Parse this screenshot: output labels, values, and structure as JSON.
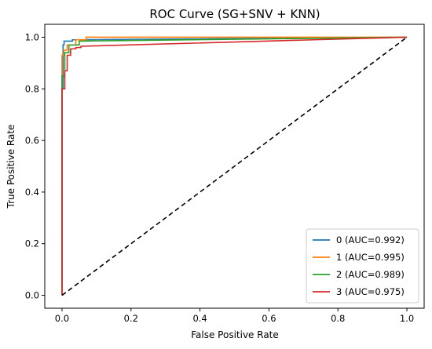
{
  "chart_data": {
    "type": "line",
    "title": "ROC Curve (SG+SNV + KNN)",
    "xlabel": "False Positive Rate",
    "ylabel": "True Positive Rate",
    "xlim": [
      -0.05,
      1.05
    ],
    "ylim": [
      -0.05,
      1.05
    ],
    "xticks": [
      "0.0",
      "0.2",
      "0.4",
      "0.6",
      "0.8",
      "1.0"
    ],
    "yticks": [
      "0.0",
      "0.2",
      "0.4",
      "0.6",
      "0.8",
      "1.0"
    ],
    "grid": false,
    "legend_position": "lower right",
    "series": [
      {
        "name": "0 (AUC=0.992)",
        "color": "#1f77b4",
        "x": [
          0,
          0,
          0.003,
          0.003,
          0.006,
          0.006,
          0.03,
          0.03,
          1.0
        ],
        "y": [
          0,
          0.8,
          0.8,
          0.97,
          0.97,
          0.985,
          0.985,
          0.99,
          1.0
        ]
      },
      {
        "name": "1 (AUC=0.995)",
        "color": "#ff7f0e",
        "x": [
          0,
          0,
          0.005,
          0.005,
          0.015,
          0.015,
          0.04,
          0.04,
          0.07,
          0.07,
          1.0
        ],
        "y": [
          0,
          0.93,
          0.93,
          0.95,
          0.95,
          0.97,
          0.97,
          0.99,
          0.99,
          1.0,
          1.0
        ]
      },
      {
        "name": "2 (AUC=0.989)",
        "color": "#2ca02c",
        "x": [
          0,
          0,
          0.008,
          0.008,
          0.02,
          0.02,
          0.05,
          0.05,
          1.0
        ],
        "y": [
          0,
          0.85,
          0.85,
          0.94,
          0.94,
          0.97,
          0.97,
          0.985,
          1.0
        ]
      },
      {
        "name": "3 (AUC=0.975)",
        "color": "#d62728",
        "x": [
          0,
          0,
          0.008,
          0.008,
          0.015,
          0.015,
          0.025,
          0.025,
          0.04,
          0.04,
          0.055,
          0.055,
          1.0
        ],
        "y": [
          0,
          0.8,
          0.8,
          0.87,
          0.87,
          0.93,
          0.93,
          0.955,
          0.955,
          0.96,
          0.96,
          0.965,
          1.0
        ]
      },
      {
        "name": "",
        "color": "#000000",
        "dashed": true,
        "x": [
          0,
          1
        ],
        "y": [
          0,
          1
        ]
      }
    ]
  }
}
